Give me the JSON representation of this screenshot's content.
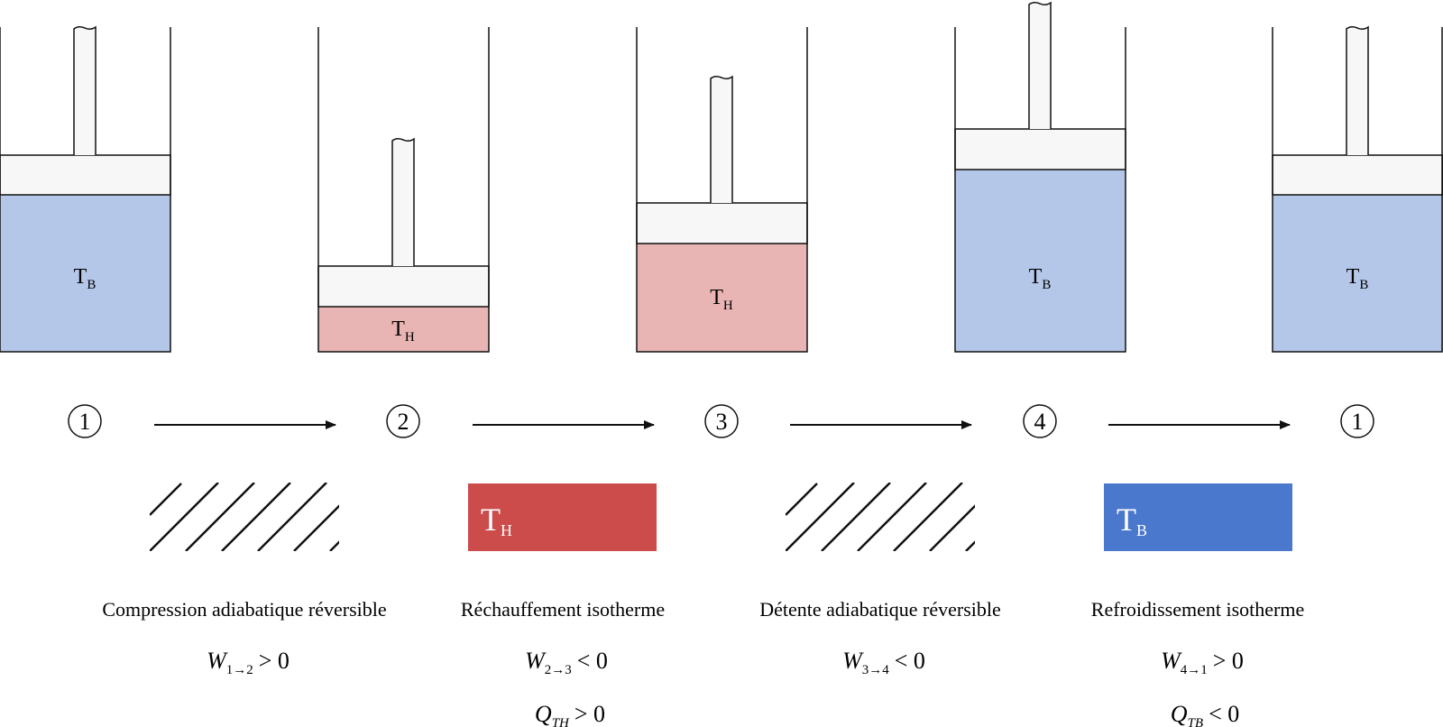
{
  "colors": {
    "cold_gas": "#b4c7e9",
    "hot_gas": "#e8b4b4",
    "cold_reservoir": "#4a78cc",
    "hot_reservoir": "#cc4b4b",
    "piston": "#f7f7f7",
    "stroke": "#111111"
  },
  "cylinders": [
    {
      "label_main": "T",
      "label_sub": "B",
      "gas": "cold"
    },
    {
      "label_main": "T",
      "label_sub": "H",
      "gas": "hot"
    },
    {
      "label_main": "T",
      "label_sub": "H",
      "gas": "hot"
    },
    {
      "label_main": "T",
      "label_sub": "B",
      "gas": "cold"
    },
    {
      "label_main": "T",
      "label_sub": "B",
      "gas": "cold"
    }
  ],
  "states": [
    "1",
    "2",
    "3",
    "4",
    "1"
  ],
  "steps": [
    {
      "reservoir": {
        "kind": "adiabatic",
        "label_main": "",
        "label_sub": ""
      },
      "title": "Compression adiabatique réversible",
      "eq1": {
        "sym": "W",
        "sub": "1→2",
        "rel": "> 0"
      },
      "eq2": null
    },
    {
      "reservoir": {
        "kind": "hot",
        "label_main": "T",
        "label_sub": "H"
      },
      "title": "Réchauffement isotherme",
      "eq1": {
        "sym": "W",
        "sub": "2→3",
        "rel": "< 0"
      },
      "eq2": {
        "sym": "Q",
        "sub": "TH",
        "rel": "> 0"
      }
    },
    {
      "reservoir": {
        "kind": "adiabatic",
        "label_main": "",
        "label_sub": ""
      },
      "title": "Détente adiabatique réversible",
      "eq1": {
        "sym": "W",
        "sub": "3→4",
        "rel": "< 0"
      },
      "eq2": null
    },
    {
      "reservoir": {
        "kind": "cold",
        "label_main": "T",
        "label_sub": "B"
      },
      "title": "Refroidissement isotherme",
      "eq1": {
        "sym": "W",
        "sub": "4→1",
        "rel": "> 0"
      },
      "eq2": {
        "sym": "Q",
        "sub": "TB",
        "rel": "< 0"
      }
    }
  ]
}
